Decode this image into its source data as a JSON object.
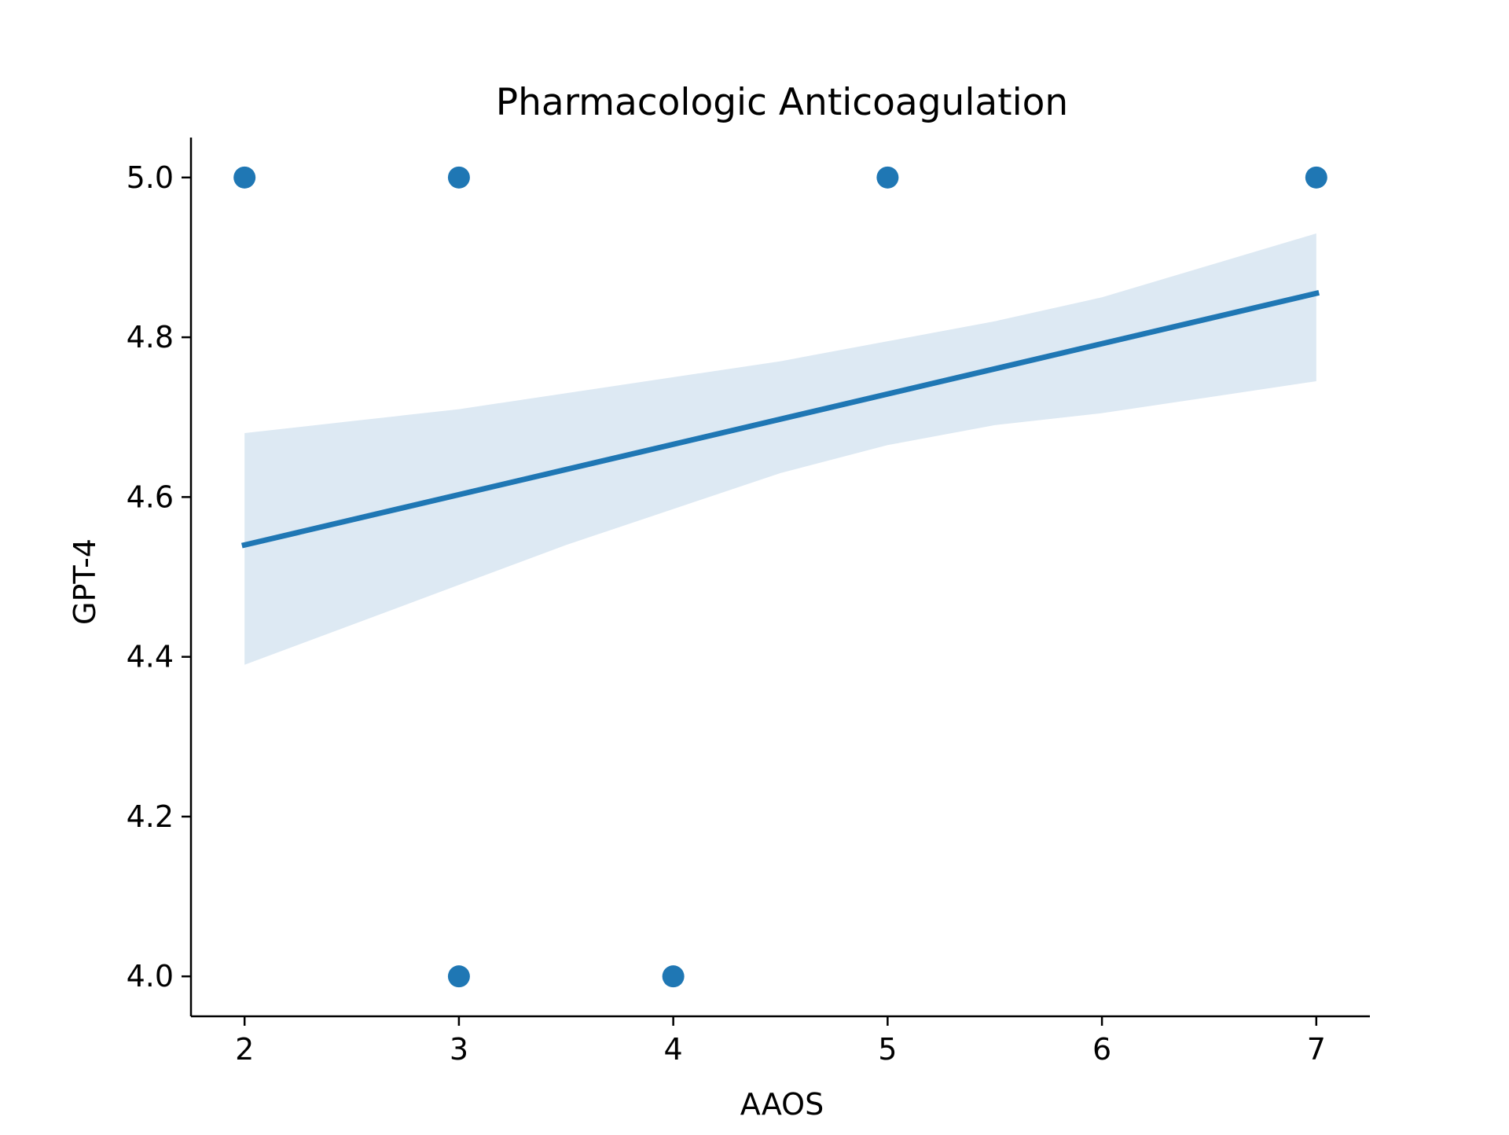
{
  "chart_data": {
    "type": "scatter",
    "title": "Pharmacologic Anticoagulation",
    "xlabel": "AAOS",
    "ylabel": "GPT-4",
    "xlim": [
      1.75,
      7.25
    ],
    "ylim": [
      3.95,
      5.05
    ],
    "xticks": [
      2,
      3,
      4,
      5,
      6,
      7
    ],
    "yticks": [
      4.0,
      4.2,
      4.4,
      4.6,
      4.8,
      5.0
    ],
    "grid": false,
    "colors": {
      "points": "#1f77b4",
      "line": "#1f77b4",
      "band": "#dde9f3",
      "axes": "#000000"
    },
    "series": [
      {
        "type": "scatter",
        "points": [
          {
            "x": 2,
            "y": 5.0
          },
          {
            "x": 3,
            "y": 5.0
          },
          {
            "x": 5,
            "y": 5.0
          },
          {
            "x": 7,
            "y": 5.0
          },
          {
            "x": 3,
            "y": 4.0
          },
          {
            "x": 4,
            "y": 4.0
          }
        ]
      }
    ],
    "regression": {
      "type": "line",
      "start": {
        "x": 2,
        "y": 4.54
      },
      "end": {
        "x": 7,
        "y": 4.855
      }
    },
    "confidence_band": {
      "type": "area",
      "x": [
        2,
        2.5,
        3,
        3.5,
        4,
        4.5,
        5,
        5.5,
        6,
        6.5,
        7
      ],
      "upper": [
        4.68,
        4.695,
        4.71,
        4.73,
        4.75,
        4.77,
        4.795,
        4.82,
        4.85,
        4.89,
        4.93
      ],
      "lower": [
        4.39,
        4.44,
        4.49,
        4.54,
        4.585,
        4.63,
        4.665,
        4.69,
        4.705,
        4.725,
        4.745
      ]
    }
  }
}
